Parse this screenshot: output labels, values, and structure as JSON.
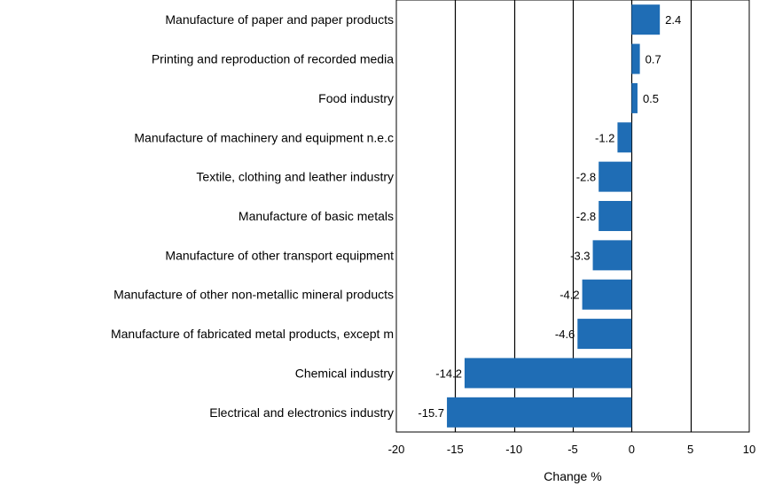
{
  "chart_data": {
    "type": "bar",
    "orientation": "horizontal",
    "categories": [
      "Manufacture of paper and paper products",
      "Printing and reproduction of recorded media",
      "Food industry",
      "Manufacture of machinery and equipment n.e.c",
      "Textile, clothing and leather industry",
      "Manufacture of basic metals",
      "Manufacture of other transport equipment",
      "Manufacture of other non-metallic mineral products",
      "Manufacture of fabricated metal products, except m",
      "Chemical industry",
      "Electrical and electronics industry"
    ],
    "values": [
      2.4,
      0.7,
      0.5,
      -1.2,
      -2.8,
      -2.8,
      -3.3,
      -4.2,
      -4.6,
      -14.2,
      -15.7
    ],
    "value_labels": [
      "2.4",
      "0.7",
      "0.5",
      "-1.2",
      "-2.8",
      "-2.8",
      "-3.3",
      "-4.2",
      "-4.6",
      "-14.2",
      "-15.7"
    ],
    "title": "",
    "xlabel": "Change %",
    "ylabel": "",
    "xlim": [
      -20,
      10
    ],
    "xticks": [
      -20,
      -15,
      -10,
      -5,
      0,
      5,
      10
    ],
    "xtick_labels": [
      "-20",
      "-15",
      "-10",
      "-5",
      "0",
      "5",
      "10"
    ],
    "grid": "vertical",
    "legend": "none",
    "colors": {
      "bar": "#1f6db5",
      "grid": "#000000",
      "background": "#ffffff"
    }
  }
}
